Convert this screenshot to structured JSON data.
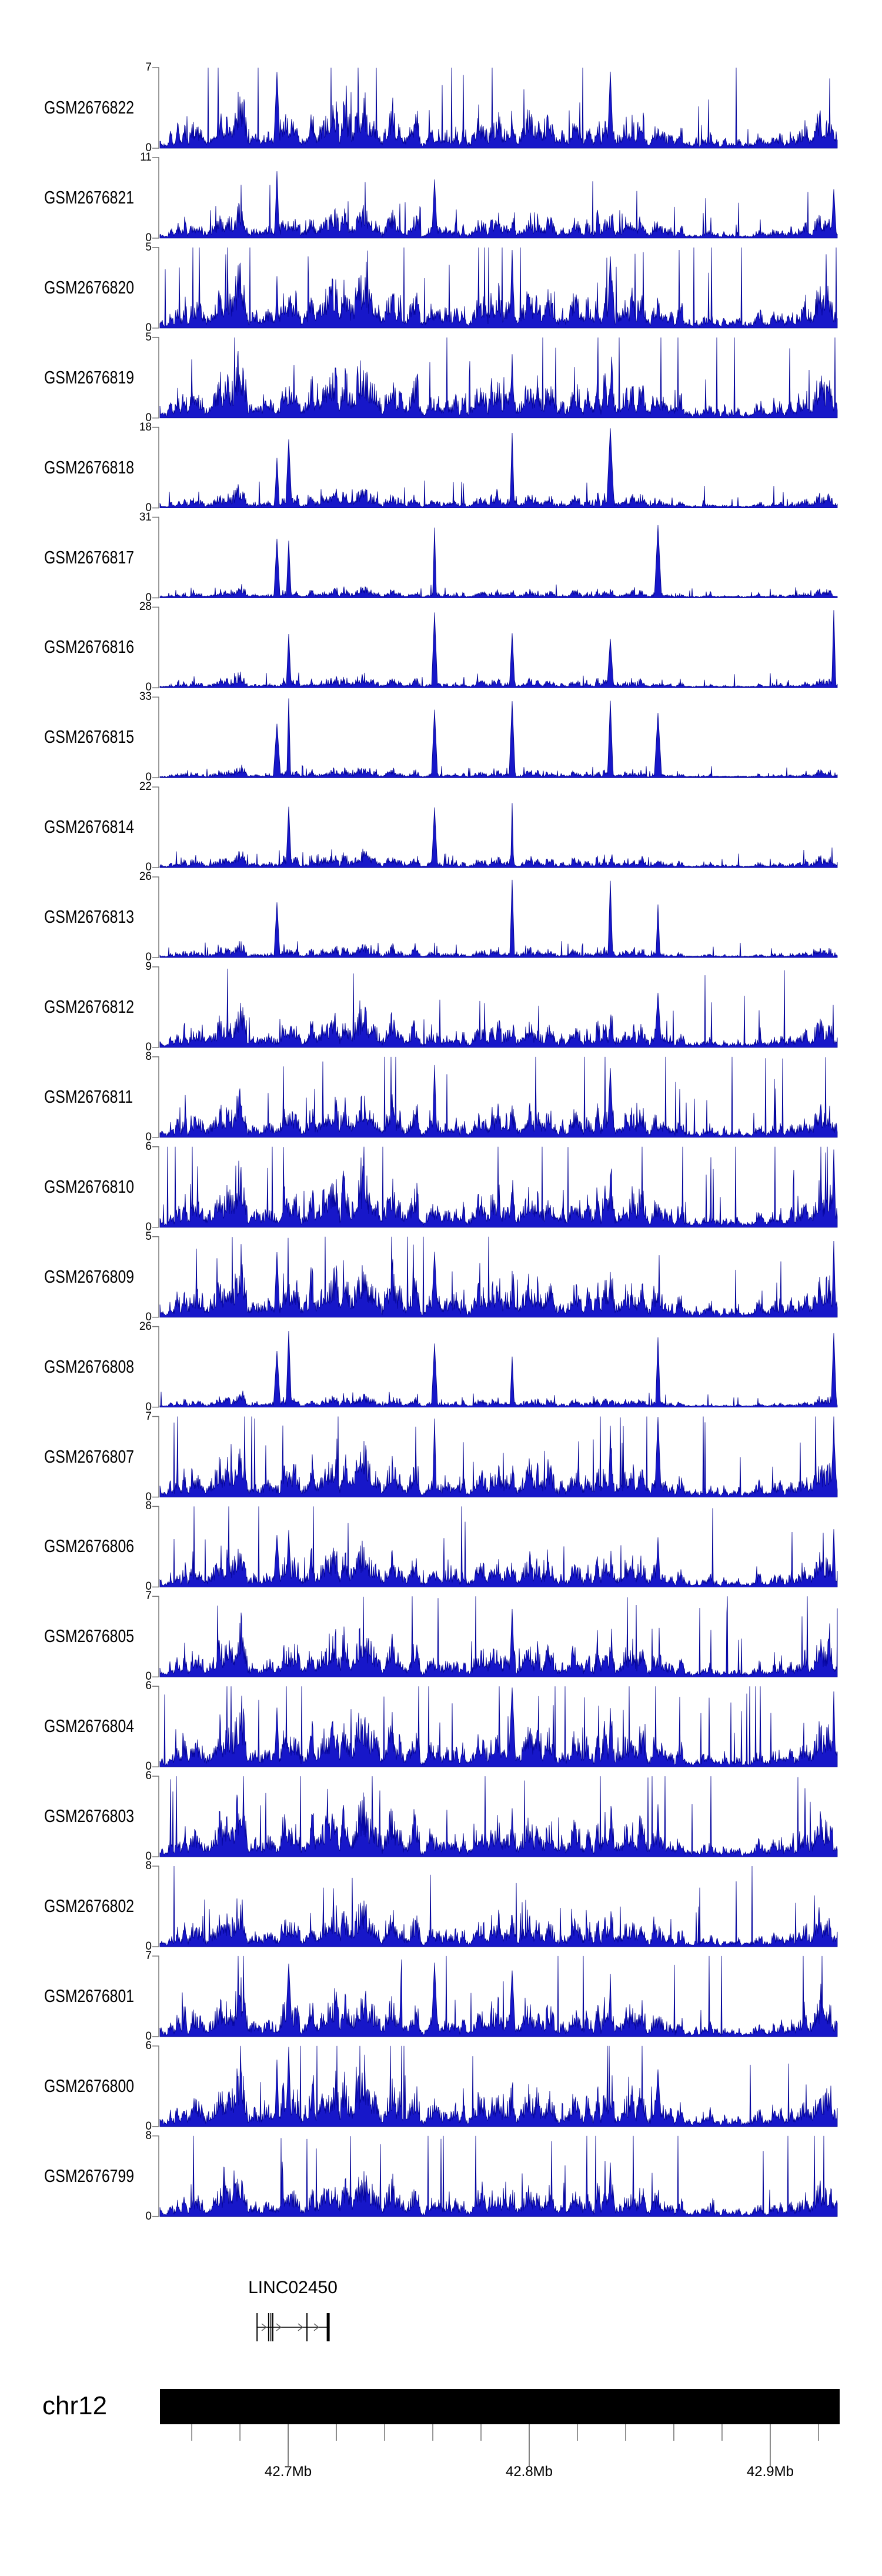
{
  "figure_type": "genome_browser_tracks",
  "background": "#ffffff",
  "chart_data": {
    "type": "area",
    "title": "",
    "y_zero_label": "0",
    "region": {
      "chromosome_label": "chr12",
      "start_mb": 42.6468,
      "end_mb": 42.9288,
      "unit": "Mb"
    },
    "tracks": [
      {
        "label": "GSM2676822",
        "ymin": 0,
        "ymax": 7
      },
      {
        "label": "GSM2676821",
        "ymin": 0,
        "ymax": 11
      },
      {
        "label": "GSM2676820",
        "ymin": 0,
        "ymax": 5
      },
      {
        "label": "GSM2676819",
        "ymin": 0,
        "ymax": 5
      },
      {
        "label": "GSM2676818",
        "ymin": 0,
        "ymax": 18
      },
      {
        "label": "GSM2676817",
        "ymin": 0,
        "ymax": 31
      },
      {
        "label": "GSM2676816",
        "ymin": 0,
        "ymax": 28
      },
      {
        "label": "GSM2676815",
        "ymin": 0,
        "ymax": 33
      },
      {
        "label": "GSM2676814",
        "ymin": 0,
        "ymax": 22
      },
      {
        "label": "GSM2676813",
        "ymin": 0,
        "ymax": 26
      },
      {
        "label": "GSM2676812",
        "ymin": 0,
        "ymax": 9
      },
      {
        "label": "GSM2676811",
        "ymin": 0,
        "ymax": 8
      },
      {
        "label": "GSM2676810",
        "ymin": 0,
        "ymax": 6
      },
      {
        "label": "GSM2676809",
        "ymin": 0,
        "ymax": 5
      },
      {
        "label": "GSM2676808",
        "ymin": 0,
        "ymax": 26
      },
      {
        "label": "GSM2676807",
        "ymin": 0,
        "ymax": 7
      },
      {
        "label": "GSM2676806",
        "ymin": 0,
        "ymax": 8
      },
      {
        "label": "GSM2676805",
        "ymin": 0,
        "ymax": 7
      },
      {
        "label": "GSM2676804",
        "ymin": 0,
        "ymax": 6
      },
      {
        "label": "GSM2676803",
        "ymin": 0,
        "ymax": 6
      },
      {
        "label": "GSM2676802",
        "ymin": 0,
        "ymax": 8
      },
      {
        "label": "GSM2676801",
        "ymin": 0,
        "ymax": 7
      },
      {
        "label": "GSM2676800",
        "ymin": 0,
        "ymax": 6
      },
      {
        "label": "GSM2676799",
        "ymin": 0,
        "ymax": 8
      }
    ],
    "genome_axis": {
      "minor_ticks_mb": [
        42.66,
        42.68,
        42.7,
        42.72,
        42.74,
        42.76,
        42.78,
        42.8,
        42.82,
        42.84,
        42.86,
        42.88,
        42.9,
        42.92
      ],
      "major_ticks": [
        {
          "mb": 42.7,
          "label": "42.7Mb"
        },
        {
          "mb": 42.8,
          "label": "42.8Mb"
        },
        {
          "mb": 42.9,
          "label": "42.9Mb"
        }
      ]
    },
    "gene_track": {
      "gene": "LINC02450",
      "strand": "+",
      "line_start_mb": 42.6871,
      "line_end_mb": 42.7172,
      "exons": [
        {
          "mb": 42.6871,
          "w": 2
        },
        {
          "mb": 42.6919,
          "w": 2
        },
        {
          "mb": 42.6928,
          "w": 1.5
        },
        {
          "mb": 42.6936,
          "w": 2
        },
        {
          "mb": 42.7078,
          "w": 2
        },
        {
          "mb": 42.7166,
          "w": 5
        }
      ],
      "arrows_mb": [
        42.69,
        42.6961,
        42.7051,
        42.7117
      ]
    },
    "style": {
      "signal_fill": "#1717c9",
      "signal_edge": "#00008f",
      "axis_color": "#7a7a7a",
      "tick_color": "#4a4a4a",
      "major_tick_color": "#333333",
      "ideogram_color": "#000000",
      "gene_color": "#000000",
      "arrow_color": "#555555",
      "text_color": "#000000"
    },
    "render_noise": {
      "seed": 1337,
      "common_peak_fractions": [
        0.173,
        0.19,
        0.405,
        0.52,
        0.665,
        0.735,
        0.995
      ]
    }
  }
}
